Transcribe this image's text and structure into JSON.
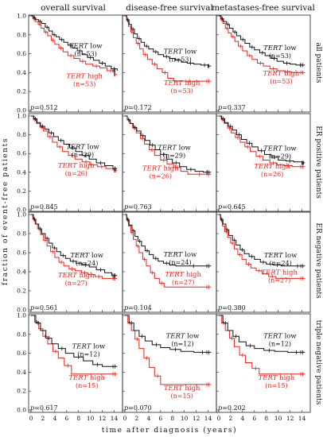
{
  "chart_data": {
    "type": "line",
    "title": "",
    "xlabel": "time after diagnosis (years)",
    "ylabel": "fraction of event-free patients",
    "xlim": [
      0,
      15
    ],
    "ylim": [
      0,
      1
    ],
    "x_ticks": [
      0,
      2,
      4,
      6,
      8,
      10,
      12,
      14
    ],
    "y_ticks": [
      0.0,
      0.2,
      0.4,
      0.6,
      0.8,
      1.0
    ],
    "x_tick_labels": [
      "0",
      "2",
      "4",
      "6",
      "8",
      "10",
      "12",
      "14"
    ],
    "y_tick_labels": [
      "0.0",
      "0.2",
      "0.4",
      "0.6",
      "0.8",
      "1.0"
    ],
    "columns": [
      "overall survival",
      "disease-free survival",
      "metastases-free survival"
    ],
    "rows": [
      "all patients",
      "ER positive patients",
      "ER negative patients",
      "triple negative patients"
    ],
    "colors": {
      "low": "#111111",
      "high": "#e8251c"
    },
    "labels": {
      "gene": "TERT",
      "low": "low",
      "high": "high",
      "p_prefix": "p="
    },
    "panels": [
      {
        "row": 0,
        "col": 0,
        "p": "0.512",
        "low": {
          "n": "(n=53)",
          "x": [
            0,
            0.4,
            0.8,
            1.3,
            1.8,
            2.4,
            3.0,
            3.6,
            4.2,
            4.8,
            5.5,
            6.2,
            7.0,
            7.8,
            8.6,
            9.5,
            10.5,
            11.5,
            12.5,
            13.5,
            14.5
          ],
          "y": [
            1,
            0.98,
            0.96,
            0.94,
            0.92,
            0.88,
            0.84,
            0.8,
            0.78,
            0.75,
            0.72,
            0.69,
            0.66,
            0.63,
            0.59,
            0.56,
            0.53,
            0.5,
            0.47,
            0.44,
            0.42
          ]
        },
        "high": {
          "n": "(n=53)",
          "x": [
            0,
            0.3,
            0.7,
            1.2,
            1.7,
            2.2,
            2.8,
            3.4,
            4.0,
            4.7,
            5.4,
            6.2,
            7.2,
            8.2,
            9.2,
            10.4,
            11.6,
            12.8,
            14.0,
            14.5
          ],
          "y": [
            1,
            0.97,
            0.94,
            0.91,
            0.87,
            0.83,
            0.79,
            0.74,
            0.7,
            0.66,
            0.62,
            0.58,
            0.55,
            0.52,
            0.49,
            0.47,
            0.45,
            0.42,
            0.38,
            0.38
          ]
        }
      },
      {
        "row": 0,
        "col": 1,
        "p": "0.172",
        "low": {
          "n": "(n=53)",
          "x": [
            0,
            0.3,
            0.7,
            1.1,
            1.6,
            2.1,
            2.7,
            3.3,
            4.0,
            4.8,
            5.6,
            6.5,
            7.5,
            8.5,
            9.5,
            10.5,
            11.6,
            12.8,
            14.0,
            14.5
          ],
          "y": [
            1,
            0.96,
            0.91,
            0.86,
            0.81,
            0.76,
            0.72,
            0.68,
            0.65,
            0.62,
            0.59,
            0.57,
            0.55,
            0.53,
            0.51,
            0.5,
            0.49,
            0.48,
            0.47,
            0.47
          ]
        },
        "high": {
          "n": "(n=53)",
          "x": [
            0,
            0.3,
            0.6,
            1.0,
            1.4,
            1.9,
            2.5,
            3.1,
            3.8,
            4.6,
            5.4,
            6.3,
            7.2,
            8.2,
            13.5,
            14.5
          ],
          "y": [
            1,
            0.95,
            0.89,
            0.83,
            0.77,
            0.71,
            0.65,
            0.59,
            0.54,
            0.49,
            0.44,
            0.4,
            0.34,
            0.31,
            0.31,
            0.31
          ]
        }
      },
      {
        "row": 0,
        "col": 2,
        "p": "0.337",
        "low": {
          "n": "(n=53)",
          "x": [
            0,
            0.4,
            0.8,
            1.3,
            1.8,
            2.4,
            3.0,
            3.7,
            4.4,
            5.2,
            6.0,
            6.9,
            7.8,
            8.8,
            9.8,
            10.9,
            12.0,
            13.0,
            14.5
          ],
          "y": [
            1,
            0.97,
            0.94,
            0.91,
            0.87,
            0.83,
            0.79,
            0.75,
            0.71,
            0.67,
            0.64,
            0.61,
            0.58,
            0.55,
            0.52,
            0.5,
            0.49,
            0.48,
            0.48
          ]
        },
        "high": {
          "n": "(n=53)",
          "x": [
            0,
            0.3,
            0.7,
            1.1,
            1.6,
            2.1,
            2.7,
            3.3,
            4.0,
            4.8,
            5.6,
            6.5,
            7.5,
            8.6,
            9.8,
            11.0,
            12.2,
            14.5
          ],
          "y": [
            1,
            0.96,
            0.92,
            0.87,
            0.82,
            0.78,
            0.73,
            0.68,
            0.63,
            0.58,
            0.54,
            0.5,
            0.47,
            0.44,
            0.42,
            0.41,
            0.4,
            0.4
          ]
        }
      },
      {
        "row": 1,
        "col": 0,
        "p": "0.845",
        "low": {
          "n": "(n=29)",
          "x": [
            0,
            0.5,
            1.0,
            1.6,
            2.3,
            3.0,
            3.8,
            4.6,
            5.5,
            6.5,
            7.5,
            8.6,
            9.8,
            11.0,
            12.4,
            13.8,
            14.5
          ],
          "y": [
            1,
            0.97,
            0.93,
            0.89,
            0.86,
            0.82,
            0.78,
            0.74,
            0.7,
            0.66,
            0.62,
            0.58,
            0.54,
            0.5,
            0.47,
            0.44,
            0.44
          ]
        },
        "high": {
          "n": "(n=26)",
          "x": [
            0,
            0.4,
            0.9,
            1.5,
            2.1,
            2.8,
            3.6,
            4.4,
            5.3,
            6.3,
            7.4,
            8.6,
            9.9,
            11.2,
            12.6,
            14.0,
            14.5
          ],
          "y": [
            1,
            0.96,
            0.92,
            0.88,
            0.84,
            0.78,
            0.72,
            0.67,
            0.62,
            0.58,
            0.54,
            0.51,
            0.48,
            0.46,
            0.44,
            0.42,
            0.42
          ]
        }
      },
      {
        "row": 1,
        "col": 1,
        "p": "0.763",
        "low": {
          "n": "(n=29)",
          "x": [
            0,
            0.4,
            0.9,
            1.4,
            2.0,
            2.7,
            3.4,
            4.2,
            5.1,
            6.0,
            7.0,
            8.0,
            9.2,
            10.4,
            11.8,
            13.2,
            14.5
          ],
          "y": [
            1,
            0.96,
            0.92,
            0.88,
            0.84,
            0.79,
            0.74,
            0.69,
            0.64,
            0.59,
            0.54,
            0.5,
            0.46,
            0.43,
            0.41,
            0.4,
            0.4
          ]
        },
        "high": {
          "n": "(n=26)",
          "x": [
            0,
            0.4,
            0.8,
            1.3,
            1.9,
            2.6,
            3.3,
            4.1,
            5.0,
            6.0,
            7.1,
            8.2,
            9.4,
            10.6,
            14.5
          ],
          "y": [
            1,
            0.96,
            0.92,
            0.87,
            0.82,
            0.76,
            0.7,
            0.64,
            0.58,
            0.53,
            0.49,
            0.45,
            0.41,
            0.38,
            0.38
          ]
        }
      },
      {
        "row": 1,
        "col": 2,
        "p": "0.645",
        "low": {
          "n": "(n=29)",
          "x": [
            0,
            0.5,
            1.0,
            1.6,
            2.3,
            3.0,
            3.8,
            4.7,
            5.6,
            6.6,
            7.7,
            8.8,
            10.0,
            11.3,
            12.6,
            14.0,
            14.5
          ],
          "y": [
            1,
            0.97,
            0.93,
            0.89,
            0.85,
            0.8,
            0.75,
            0.71,
            0.67,
            0.63,
            0.59,
            0.56,
            0.53,
            0.52,
            0.51,
            0.5,
            0.5
          ]
        },
        "high": {
          "n": "(n=26)",
          "x": [
            0,
            0.4,
            0.9,
            1.5,
            2.1,
            2.8,
            3.6,
            4.4,
            5.3,
            6.3,
            7.4,
            8.6,
            9.8,
            11.0,
            12.4,
            14.5
          ],
          "y": [
            1,
            0.96,
            0.92,
            0.87,
            0.82,
            0.77,
            0.72,
            0.67,
            0.62,
            0.57,
            0.53,
            0.5,
            0.48,
            0.47,
            0.46,
            0.46
          ]
        }
      },
      {
        "row": 2,
        "col": 0,
        "p": "0.561",
        "low": {
          "n": "(n=24)",
          "x": [
            0,
            0.4,
            0.8,
            1.3,
            1.8,
            2.4,
            3.0,
            3.6,
            4.3,
            5.0,
            5.8,
            6.6,
            7.6,
            8.6,
            9.8,
            11.0,
            12.4,
            13.6,
            14.5
          ],
          "y": [
            1,
            0.95,
            0.9,
            0.85,
            0.8,
            0.75,
            0.7,
            0.65,
            0.61,
            0.57,
            0.54,
            0.51,
            0.49,
            0.47,
            0.45,
            0.42,
            0.39,
            0.36,
            0.36
          ]
        },
        "high": {
          "n": "(n=27)",
          "x": [
            0,
            0.3,
            0.7,
            1.1,
            1.6,
            2.1,
            2.7,
            3.3,
            4.0,
            4.7,
            5.5,
            6.4,
            7.4,
            8.5,
            9.6,
            10.8,
            12.0,
            13.4,
            14.5
          ],
          "y": [
            1,
            0.95,
            0.9,
            0.85,
            0.79,
            0.73,
            0.67,
            0.61,
            0.55,
            0.5,
            0.46,
            0.43,
            0.41,
            0.39,
            0.37,
            0.35,
            0.33,
            0.33,
            0.33
          ]
        }
      },
      {
        "row": 2,
        "col": 1,
        "p": "0.104",
        "low": {
          "n": "(n=24)",
          "x": [
            0,
            0.3,
            0.7,
            1.2,
            1.7,
            2.2,
            2.8,
            3.4,
            4.1,
            4.8,
            5.6,
            6.5,
            7.5,
            8.6,
            14.5
          ],
          "y": [
            1,
            0.95,
            0.89,
            0.83,
            0.77,
            0.72,
            0.67,
            0.62,
            0.58,
            0.54,
            0.51,
            0.49,
            0.47,
            0.46,
            0.46
          ]
        },
        "high": {
          "n": "(n=27)",
          "x": [
            0,
            0.3,
            0.6,
            1.0,
            1.4,
            1.9,
            2.4,
            3.0,
            3.6,
            4.3,
            5.0,
            5.8,
            6.6,
            14.5
          ],
          "y": [
            1,
            0.94,
            0.88,
            0.81,
            0.74,
            0.67,
            0.6,
            0.53,
            0.46,
            0.39,
            0.33,
            0.28,
            0.24,
            0.24
          ]
        }
      },
      {
        "row": 2,
        "col": 2,
        "p": "0.380",
        "low": {
          "n": "(n=24)",
          "x": [
            0,
            0.3,
            0.7,
            1.2,
            1.7,
            2.3,
            2.9,
            3.6,
            4.3,
            5.1,
            6.0,
            7.0,
            8.0,
            9.2,
            10.5,
            12.0,
            14.5
          ],
          "y": [
            1,
            0.95,
            0.9,
            0.84,
            0.78,
            0.73,
            0.68,
            0.63,
            0.59,
            0.56,
            0.53,
            0.5,
            0.48,
            0.47,
            0.46,
            0.46,
            0.46
          ]
        },
        "high": {
          "n": "(n=27)",
          "x": [
            0,
            0.3,
            0.6,
            1.0,
            1.5,
            2.0,
            2.6,
            3.2,
            3.9,
            4.6,
            5.4,
            6.3,
            7.3,
            8.4,
            9.6,
            14.5
          ],
          "y": [
            1,
            0.94,
            0.88,
            0.82,
            0.76,
            0.7,
            0.64,
            0.58,
            0.53,
            0.48,
            0.44,
            0.41,
            0.38,
            0.35,
            0.33,
            0.33
          ]
        }
      },
      {
        "row": 3,
        "col": 0,
        "p": "0.617",
        "low": {
          "n": "(n=12)",
          "x": [
            0,
            0.8,
            1.6,
            2.5,
            3.5,
            4.6,
            5.8,
            7.2,
            8.8,
            10.4,
            12.0,
            14.5
          ],
          "y": [
            1,
            0.92,
            0.84,
            0.76,
            0.7,
            0.65,
            0.6,
            0.56,
            0.52,
            0.48,
            0.46,
            0.46
          ]
        },
        "high": {
          "n": "(n=15)",
          "x": [
            0,
            0.6,
            1.3,
            2.0,
            2.8,
            3.7,
            4.6,
            5.6,
            6.8,
            14.5
          ],
          "y": [
            1,
            0.93,
            0.86,
            0.78,
            0.7,
            0.62,
            0.55,
            0.47,
            0.38,
            0.38
          ]
        }
      },
      {
        "row": 3,
        "col": 1,
        "p": "0.070",
        "low": {
          "n": "(n=12)",
          "x": [
            0,
            0.7,
            1.5,
            2.4,
            3.4,
            4.6,
            6.0,
            7.6,
            9.4,
            11.6,
            14.5
          ],
          "y": [
            1,
            0.92,
            0.84,
            0.78,
            0.73,
            0.69,
            0.66,
            0.64,
            0.62,
            0.61,
            0.61
          ]
        },
        "high": {
          "n": "(n=15)",
          "x": [
            0,
            0.5,
            1.1,
            1.7,
            2.4,
            3.2,
            4.1,
            5.0,
            6.0,
            14.5
          ],
          "y": [
            1,
            0.92,
            0.84,
            0.75,
            0.65,
            0.55,
            0.45,
            0.36,
            0.27,
            0.27
          ]
        }
      },
      {
        "row": 3,
        "col": 2,
        "p": "0.202",
        "low": {
          "n": "(n=12)",
          "x": [
            0,
            0.7,
            1.5,
            2.4,
            3.4,
            4.6,
            6.0,
            7.6,
            9.4,
            11.6,
            14.5
          ],
          "y": [
            1,
            0.92,
            0.84,
            0.78,
            0.72,
            0.68,
            0.65,
            0.63,
            0.62,
            0.61,
            0.61
          ]
        },
        "high": {
          "n": "(n=15)",
          "x": [
            0,
            0.5,
            1.1,
            1.8,
            2.6,
            3.5,
            4.5,
            5.6,
            6.8,
            14.5
          ],
          "y": [
            1,
            0.92,
            0.84,
            0.76,
            0.67,
            0.58,
            0.5,
            0.44,
            0.38,
            0.38
          ]
        }
      }
    ]
  }
}
